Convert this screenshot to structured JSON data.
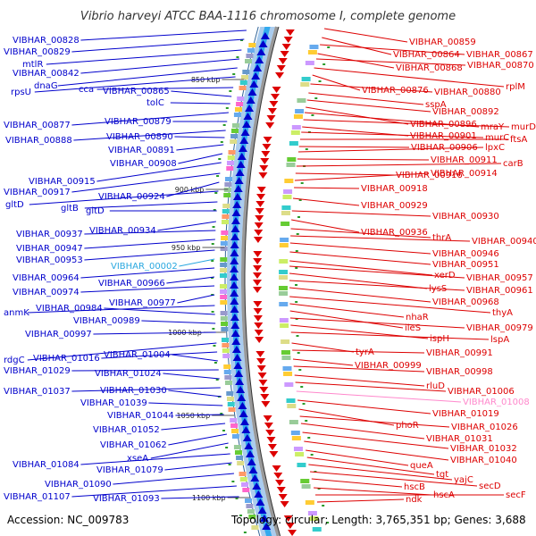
{
  "title": "Vibrio harveyi ATCC BAA-1116 chromosome I, complete genome",
  "accession_text": "Accession: NC_009783",
  "info_text": "Topology: circular; Length: 3,765,351 bp; Genes: 3,688",
  "colors": {
    "forward": "#0000cc",
    "reverse": "#dd0000",
    "rna_forward": "#2aa8e0",
    "rna_reverse": "#ff88cc",
    "ring_outer": "#aaccee",
    "ring_inner": "#33aaee",
    "backbone": "#999999",
    "tick": "#2a9a2a"
  },
  "kbp_marks": [
    {
      "label": "850 kbp"
    },
    {
      "label": "900 kbp"
    },
    {
      "label": "950 kbp"
    },
    {
      "label": "1000 kbp"
    },
    {
      "label": "1050 kbp"
    },
    {
      "label": "1100 kbp"
    }
  ],
  "left_labels": [
    {
      "text": "VIBHAR_00828",
      "strand": "forward"
    },
    {
      "text": "VIBHAR_00829",
      "strand": "forward"
    },
    {
      "text": "mtlR",
      "strand": "forward"
    },
    {
      "text": "VIBHAR_00842",
      "strand": "forward"
    },
    {
      "text": "dnaG",
      "strand": "forward"
    },
    {
      "text": "rpsU",
      "strand": "forward"
    },
    {
      "text": "cca",
      "strand": "forward"
    },
    {
      "text": "VIBHAR_00865",
      "strand": "forward"
    },
    {
      "text": "tolC",
      "strand": "forward"
    },
    {
      "text": "VIBHAR_00877",
      "strand": "forward"
    },
    {
      "text": "VIBHAR_00879",
      "strand": "forward"
    },
    {
      "text": "VIBHAR_00888",
      "strand": "forward"
    },
    {
      "text": "VIBHAR_00890",
      "strand": "forward"
    },
    {
      "text": "VIBHAR_00891",
      "strand": "forward"
    },
    {
      "text": "VIBHAR_00908",
      "strand": "forward"
    },
    {
      "text": "VIBHAR_00915",
      "strand": "forward"
    },
    {
      "text": "VIBHAR_00917",
      "strand": "forward"
    },
    {
      "text": "VIBHAR_00924",
      "strand": "forward"
    },
    {
      "text": "gltD",
      "strand": "forward"
    },
    {
      "text": "gltB",
      "strand": "forward"
    },
    {
      "text": "gltD",
      "strand": "forward"
    },
    {
      "text": "VIBHAR_00934",
      "strand": "forward"
    },
    {
      "text": "VIBHAR_00937",
      "strand": "forward"
    },
    {
      "text": "VIBHAR_00947",
      "strand": "forward"
    },
    {
      "text": "VIBHAR_00953",
      "strand": "forward"
    },
    {
      "text": "VIBHAR_00002",
      "strand": "rna_forward"
    },
    {
      "text": "VIBHAR_00964",
      "strand": "forward"
    },
    {
      "text": "VIBHAR_00966",
      "strand": "forward"
    },
    {
      "text": "VIBHAR_00974",
      "strand": "forward"
    },
    {
      "text": "VIBHAR_00977",
      "strand": "forward"
    },
    {
      "text": "anmK",
      "strand": "forward"
    },
    {
      "text": "VIBHAR_00984",
      "strand": "forward"
    },
    {
      "text": "VIBHAR_00989",
      "strand": "forward"
    },
    {
      "text": "VIBHAR_00997",
      "strand": "forward"
    },
    {
      "text": "rdgC",
      "strand": "forward"
    },
    {
      "text": "VIBHAR_01016",
      "strand": "forward"
    },
    {
      "text": "VIBHAR_01004",
      "strand": "forward"
    },
    {
      "text": "VIBHAR_01029",
      "strand": "forward"
    },
    {
      "text": "VIBHAR_01024",
      "strand": "forward"
    },
    {
      "text": "VIBHAR_01037",
      "strand": "forward"
    },
    {
      "text": "VIBHAR_01030",
      "strand": "forward"
    },
    {
      "text": "VIBHAR_01039",
      "strand": "forward"
    },
    {
      "text": "VIBHAR_01044",
      "strand": "forward"
    },
    {
      "text": "VIBHAR_01052",
      "strand": "forward"
    },
    {
      "text": "VIBHAR_01062",
      "strand": "forward"
    },
    {
      "text": "xseA",
      "strand": "forward"
    },
    {
      "text": "VIBHAR_01084",
      "strand": "forward"
    },
    {
      "text": "VIBHAR_01079",
      "strand": "forward"
    },
    {
      "text": "VIBHAR_01090",
      "strand": "forward"
    },
    {
      "text": "VIBHAR_01107",
      "strand": "forward"
    },
    {
      "text": "VIBHAR_01093",
      "strand": "forward"
    }
  ],
  "right_labels": [
    {
      "text": "VIBHAR_00859",
      "strand": "reverse"
    },
    {
      "text": "VIBHAR_00864",
      "strand": "reverse"
    },
    {
      "text": "VIBHAR_00867",
      "strand": "reverse"
    },
    {
      "text": "VIBHAR_00868",
      "strand": "reverse"
    },
    {
      "text": "VIBHAR_00870",
      "strand": "reverse"
    },
    {
      "text": "rplM",
      "strand": "reverse"
    },
    {
      "text": "VIBHAR_00876",
      "strand": "reverse"
    },
    {
      "text": "VIBHAR_00880",
      "strand": "reverse"
    },
    {
      "text": "sspA",
      "strand": "reverse"
    },
    {
      "text": "VIBHAR_00892",
      "strand": "reverse"
    },
    {
      "text": "VIBHAR_00896",
      "strand": "reverse"
    },
    {
      "text": "mraY",
      "strand": "reverse"
    },
    {
      "text": "murD",
      "strand": "reverse"
    },
    {
      "text": "VIBHAR_00901",
      "strand": "reverse"
    },
    {
      "text": "murC",
      "strand": "reverse"
    },
    {
      "text": "ftsA",
      "strand": "reverse"
    },
    {
      "text": "VIBHAR_00906",
      "strand": "reverse"
    },
    {
      "text": "lpxC",
      "strand": "reverse"
    },
    {
      "text": "VIBHAR_00911",
      "strand": "reverse"
    },
    {
      "text": "carB",
      "strand": "reverse"
    },
    {
      "text": "VIBHAR_00916",
      "strand": "reverse"
    },
    {
      "text": "VIBHAR_00914",
      "strand": "reverse"
    },
    {
      "text": "VIBHAR_00918",
      "strand": "reverse"
    },
    {
      "text": "VIBHAR_00929",
      "strand": "reverse"
    },
    {
      "text": "VIBHAR_00930",
      "strand": "reverse"
    },
    {
      "text": "VIBHAR_00936",
      "strand": "reverse"
    },
    {
      "text": "thrA",
      "strand": "reverse"
    },
    {
      "text": "VIBHAR_00940",
      "strand": "reverse"
    },
    {
      "text": "VIBHAR_00946",
      "strand": "reverse"
    },
    {
      "text": "VIBHAR_00951",
      "strand": "reverse"
    },
    {
      "text": "xerD",
      "strand": "reverse"
    },
    {
      "text": "VIBHAR_00957",
      "strand": "reverse"
    },
    {
      "text": "lysS",
      "strand": "reverse"
    },
    {
      "text": "VIBHAR_00961",
      "strand": "reverse"
    },
    {
      "text": "VIBHAR_00968",
      "strand": "reverse"
    },
    {
      "text": "thyA",
      "strand": "reverse"
    },
    {
      "text": "nhaR",
      "strand": "reverse"
    },
    {
      "text": "ileS",
      "strand": "reverse"
    },
    {
      "text": "VIBHAR_00979",
      "strand": "reverse"
    },
    {
      "text": "ispH",
      "strand": "reverse"
    },
    {
      "text": "lspA",
      "strand": "reverse"
    },
    {
      "text": "tyrA",
      "strand": "reverse"
    },
    {
      "text": "VIBHAR_00991",
      "strand": "reverse"
    },
    {
      "text": "VIBHAR_00999",
      "strand": "reverse"
    },
    {
      "text": "VIBHAR_00998",
      "strand": "reverse"
    },
    {
      "text": "rluD",
      "strand": "reverse"
    },
    {
      "text": "VIBHAR_01006",
      "strand": "reverse"
    },
    {
      "text": "VIBHAR_01008",
      "strand": "rna_reverse"
    },
    {
      "text": "VIBHAR_01019",
      "strand": "reverse"
    },
    {
      "text": "phoR",
      "strand": "reverse"
    },
    {
      "text": "VIBHAR_01026",
      "strand": "reverse"
    },
    {
      "text": "VIBHAR_01031",
      "strand": "reverse"
    },
    {
      "text": "VIBHAR_01032",
      "strand": "reverse"
    },
    {
      "text": "VIBHAR_01040",
      "strand": "reverse"
    },
    {
      "text": "queA",
      "strand": "reverse"
    },
    {
      "text": "tgt",
      "strand": "reverse"
    },
    {
      "text": "yajC",
      "strand": "reverse"
    },
    {
      "text": "secD",
      "strand": "reverse"
    },
    {
      "text": "hscB",
      "strand": "reverse"
    },
    {
      "text": "hscA",
      "strand": "reverse"
    },
    {
      "text": "secF",
      "strand": "reverse"
    },
    {
      "text": "ndk",
      "strand": "reverse"
    }
  ]
}
